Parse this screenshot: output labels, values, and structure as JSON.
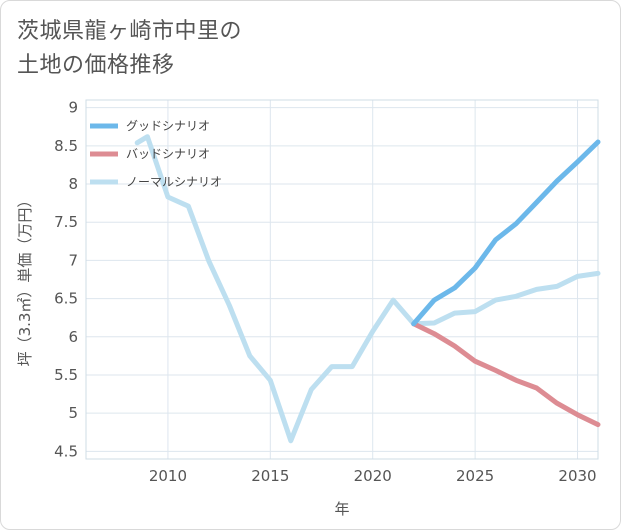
{
  "title_line1": "茨城県龍ヶ崎市中里の",
  "title_line2": "土地の価格推移",
  "chart_data": {
    "type": "line",
    "xlabel": "年",
    "ylabel": "坪（3.3㎡）単価（万円）",
    "xlim": [
      2006,
      2031
    ],
    "ylim": [
      4.4,
      9.1
    ],
    "xticks": [
      2010,
      2015,
      2020,
      2025,
      2030
    ],
    "yticks": [
      4.5,
      5,
      5.5,
      6,
      6.5,
      7,
      7.5,
      8,
      8.5,
      9
    ],
    "ytick_labels": [
      "4.5",
      "5",
      "5.5",
      "6",
      "6.5",
      "7",
      "7.5",
      "8",
      "8.5",
      "9"
    ],
    "legend_position": "top-left",
    "grid": true,
    "series": [
      {
        "name": "グッドシナリオ",
        "color": "#6cb8ea",
        "x": [
          2022,
          2023,
          2024,
          2025,
          2026,
          2027,
          2028,
          2029,
          2030,
          2031
        ],
        "y": [
          6.17,
          6.48,
          6.64,
          6.9,
          7.27,
          7.48,
          7.76,
          8.04,
          8.29,
          8.55
        ]
      },
      {
        "name": "バッドシナリオ",
        "color": "#dd8c93",
        "x": [
          2022,
          2023,
          2024,
          2025,
          2026,
          2027,
          2028,
          2029,
          2030,
          2031
        ],
        "y": [
          6.17,
          6.04,
          5.88,
          5.68,
          5.56,
          5.43,
          5.33,
          5.13,
          4.98,
          4.85
        ]
      },
      {
        "name": "ノーマルシナリオ",
        "color": "#bddff0",
        "x": [
          2008.5,
          2009,
          2010,
          2011,
          2012,
          2013,
          2014,
          2015,
          2016,
          2017,
          2018,
          2019,
          2020,
          2021,
          2022,
          2023,
          2024,
          2025,
          2026,
          2027,
          2028,
          2029,
          2030,
          2031
        ],
        "y": [
          8.54,
          8.62,
          7.83,
          7.71,
          6.99,
          6.41,
          5.75,
          5.43,
          4.64,
          5.31,
          5.61,
          5.61,
          6.07,
          6.48,
          6.17,
          6.18,
          6.31,
          6.33,
          6.48,
          6.53,
          6.62,
          6.66,
          6.79,
          6.83
        ]
      }
    ]
  }
}
